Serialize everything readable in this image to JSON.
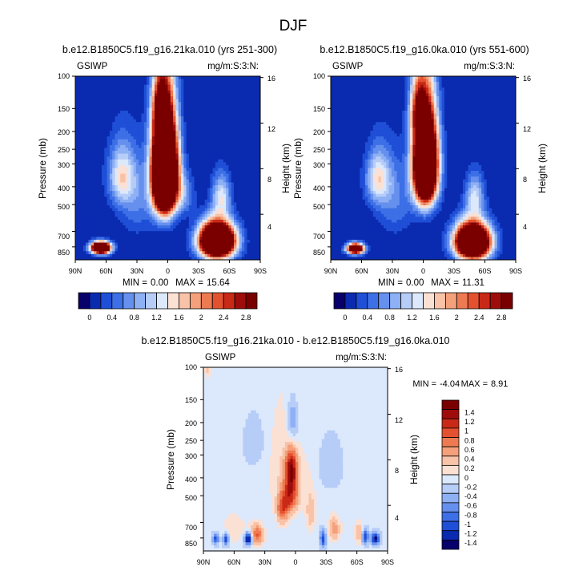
{
  "chart_data": {
    "type": "heatmap",
    "title": "DJF",
    "colormap_key": "blue-white-red",
    "panels": [
      {
        "id": "top-left",
        "title": "b.e12.B1850C5.f19_g16.21ka.010 (yrs 251-300)",
        "left_label": "GSIWP",
        "right_label": "mg/m:S:3:N:",
        "ylabel": "Pressure (mb)",
        "y2label": "Height (km)",
        "xticks": [
          "90N",
          "60N",
          "30N",
          "0",
          "30S",
          "60S",
          "90S"
        ],
        "yticks": [
          "100",
          "150",
          "200",
          "250",
          "300",
          "400",
          "500",
          "700",
          "850"
        ],
        "y2ticks": [
          "16",
          "12",
          "8",
          "4"
        ],
        "min_label": "MIN =",
        "min": "0.00",
        "max_label": "MAX =",
        "max": "15.64",
        "blobs": [
          {
            "lat": -48,
            "p": 790,
            "slat": 16,
            "sp": 165,
            "amp": 7.5
          },
          {
            "lat": 3,
            "p": 330,
            "slat": 11,
            "sp": 190,
            "amp": 9.5
          },
          {
            "lat": 8,
            "p": 150,
            "slat": 7,
            "sp": 55,
            "amp": 1.6
          },
          {
            "lat": 65,
            "p": 860,
            "slat": 9,
            "sp": 60,
            "amp": 6.5
          },
          {
            "lat": -52,
            "p": 450,
            "slat": 9,
            "sp": 120,
            "amp": 1.3
          },
          {
            "lat": 45,
            "p": 350,
            "slat": 13,
            "sp": 130,
            "amp": 1.4
          },
          {
            "lat": -15,
            "p": 440,
            "slat": 10,
            "sp": 110,
            "amp": 0.8
          },
          {
            "lat": 30,
            "p": 470,
            "slat": 18,
            "sp": 230,
            "amp": 0.6
          }
        ]
      },
      {
        "id": "top-right",
        "title": "b.e12.B1850C5.f19_g16.0ka.010 (yrs 551-600)",
        "left_label": "GSIWP",
        "right_label": "mg/m:S:3:N:",
        "ylabel": "Pressure (mb)",
        "y2label": "Height (km)",
        "xticks": [
          "90N",
          "60N",
          "30N",
          "0",
          "30S",
          "60S",
          "90S"
        ],
        "yticks": [
          "100",
          "150",
          "200",
          "250",
          "300",
          "400",
          "500",
          "700",
          "850"
        ],
        "y2ticks": [
          "16",
          "12",
          "8",
          "4"
        ],
        "min_label": "MIN =",
        "min": "0.00",
        "max_label": "MAX =",
        "max": "11.31",
        "blobs": [
          {
            "lat": -48,
            "p": 800,
            "slat": 16,
            "sp": 170,
            "amp": 7.0
          },
          {
            "lat": -2,
            "p": 300,
            "slat": 11,
            "sp": 170,
            "amp": 7.5
          },
          {
            "lat": 6,
            "p": 150,
            "slat": 7,
            "sp": 55,
            "amp": 1.5
          },
          {
            "lat": 66,
            "p": 870,
            "slat": 8,
            "sp": 55,
            "amp": 5.0
          },
          {
            "lat": -50,
            "p": 450,
            "slat": 9,
            "sp": 120,
            "amp": 1.2
          },
          {
            "lat": 44,
            "p": 360,
            "slat": 12,
            "sp": 120,
            "amp": 1.4
          },
          {
            "lat": 28,
            "p": 470,
            "slat": 18,
            "sp": 230,
            "amp": 0.6
          }
        ]
      },
      {
        "id": "bottom-diff",
        "title": "b.e12.B1850C5.f19_g16.21ka.010 - b.e12.B1850C5.f19_g16.0ka.010",
        "left_label": "GSIWP",
        "right_label": "mg/m:S:3:N:",
        "ylabel": "Pressure (mb)",
        "y2label": "Height (km)",
        "xticks": [
          "90N",
          "60N",
          "30N",
          "0",
          "30S",
          "60S",
          "90S"
        ],
        "yticks": [
          "100",
          "150",
          "200",
          "250",
          "300",
          "400",
          "500",
          "700",
          "850"
        ],
        "y2ticks": [
          "16",
          "12",
          "8",
          "4"
        ],
        "min_label": "MIN =",
        "min": "-4.04",
        "max_label": "MAX =",
        "max": "8.91",
        "background": -0.15,
        "blobs": [
          {
            "lat": 8,
            "p": 340,
            "slat": 22,
            "sp": 240,
            "amp": 0.35
          },
          {
            "lat": 5,
            "p": 500,
            "slat": 8,
            "sp": 110,
            "amp": 1.0
          },
          {
            "lat": 4,
            "p": 350,
            "slat": 6,
            "sp": 90,
            "amp": 1.2
          },
          {
            "lat": 13,
            "p": 600,
            "slat": 6,
            "sp": 110,
            "amp": 0.9
          },
          {
            "lat": -15,
            "p": 620,
            "slat": 5,
            "sp": 160,
            "amp": 0.5
          },
          {
            "lat": -38,
            "p": 760,
            "slat": 6,
            "sp": 120,
            "amp": 0.7
          },
          {
            "lat": -62,
            "p": 800,
            "slat": 4,
            "sp": 120,
            "amp": 0.6
          },
          {
            "lat": 38,
            "p": 820,
            "slat": 7,
            "sp": 110,
            "amp": 1.0
          },
          {
            "lat": 60,
            "p": 760,
            "slat": 12,
            "sp": 140,
            "amp": 0.35
          },
          {
            "lat": -78,
            "p": 860,
            "slat": 4,
            "sp": 60,
            "amp": -1.4
          },
          {
            "lat": -68,
            "p": 840,
            "slat": 3,
            "sp": 80,
            "amp": -1.1
          },
          {
            "lat": -27,
            "p": 860,
            "slat": 3,
            "sp": 90,
            "amp": -1.0
          },
          {
            "lat": 46,
            "p": 860,
            "slat": 4,
            "sp": 70,
            "amp": -1.6
          },
          {
            "lat": 68,
            "p": 860,
            "slat": 3,
            "sp": 70,
            "amp": -1.1
          },
          {
            "lat": 78,
            "p": 860,
            "slat": 3,
            "sp": 60,
            "amp": -1.0
          },
          {
            "lat": 3,
            "p": 195,
            "slat": 5,
            "sp": 55,
            "amp": -0.55
          },
          {
            "lat": 2,
            "p": 250,
            "slat": 10,
            "sp": 90,
            "amp": -0.2
          },
          {
            "lat": -33,
            "p": 340,
            "slat": 11,
            "sp": 100,
            "amp": -0.25
          },
          {
            "lat": 38,
            "p": 260,
            "slat": 12,
            "sp": 90,
            "amp": -0.2
          },
          {
            "lat": 86,
            "p": 105,
            "slat": 3,
            "sp": 10,
            "amp": 0.4
          }
        ]
      }
    ],
    "colorbars": [
      {
        "id": "top-left-colorbar",
        "orientation": "horizontal",
        "labels": [
          "0",
          "0.4",
          "0.8",
          "1.2",
          "1.6",
          "2",
          "2.4",
          "2.8"
        ],
        "levels": [
          0,
          0.2,
          0.4,
          0.6,
          0.8,
          1,
          1.2,
          1.4,
          1.6,
          1.8,
          2,
          2.2,
          2.4,
          2.6,
          2.8
        ]
      },
      {
        "id": "top-right-colorbar",
        "orientation": "horizontal",
        "labels": [
          "0",
          "0.4",
          "0.8",
          "1.2",
          "1.6",
          "2",
          "2.4",
          "2.8"
        ],
        "levels": [
          0,
          0.2,
          0.4,
          0.6,
          0.8,
          1,
          1.2,
          1.4,
          1.6,
          1.8,
          2,
          2.2,
          2.4,
          2.6,
          2.8
        ]
      },
      {
        "id": "diff-colorbar",
        "orientation": "vertical",
        "labels": [
          "1.4",
          "1.2",
          "1",
          "0.8",
          "0.6",
          "0.4",
          "0.2",
          "0",
          "-0.2",
          "-0.4",
          "-0.6",
          "-0.8",
          "-1",
          "-1.2",
          "-1.4"
        ],
        "levels": [
          -1.4,
          -1.2,
          -1,
          -0.8,
          -0.6,
          -0.4,
          -0.2,
          0,
          0.2,
          0.4,
          0.6,
          0.8,
          1,
          1.2,
          1.4
        ]
      }
    ],
    "palette": [
      "#08006b",
      "#0a2bb0",
      "#1f4fd6",
      "#3d6fe6",
      "#6690ee",
      "#8eb0f4",
      "#b6cdf8",
      "#dce8fb",
      "#fbe0d4",
      "#f8c3a8",
      "#f4a07b",
      "#ee7a52",
      "#e45130",
      "#c92a17",
      "#9e0d0b",
      "#7a0000"
    ]
  }
}
